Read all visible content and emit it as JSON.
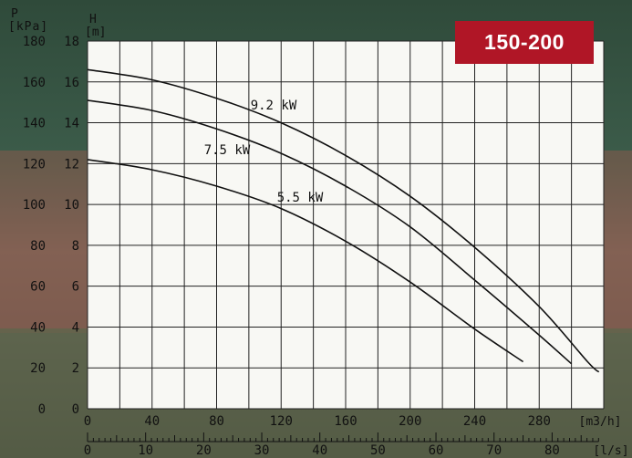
{
  "badge": "150-200",
  "left_axis": {
    "p_symbol": "P",
    "p_unit": "[kPa]",
    "h_symbol": "H",
    "h_unit": "[m]",
    "p_ticks": [
      "0",
      "20",
      "40",
      "60",
      "80",
      "100",
      "120",
      "140",
      "160",
      "180"
    ],
    "h_ticks": [
      "0",
      "2",
      "4",
      "6",
      "8",
      "10",
      "12",
      "14",
      "16",
      "18"
    ]
  },
  "bottom_axis": {
    "flow_m3h_unit": "[m3/h]",
    "flow_m3h_ticks": [
      "0",
      "40",
      "80",
      "120",
      "160",
      "200",
      "240",
      "280"
    ],
    "flow_ls_unit": "[l/s]",
    "flow_ls_ticks": [
      "0",
      "10",
      "20",
      "30",
      "40",
      "50",
      "60",
      "70",
      "80"
    ]
  },
  "colors": {
    "badge_bg": "#b01626",
    "badge_text": "#ffffff",
    "grid": "#222222",
    "curve": "#111111",
    "panel": "#f8f8f4"
  },
  "chart_data": {
    "type": "line",
    "title": "150-200",
    "xlabel": "[m3/h]",
    "ylabel": "H [m]",
    "secondary_xlabel": "[l/s]",
    "secondary_ylabel": "P [kPa]",
    "xlim": [
      0,
      320
    ],
    "ylim": [
      0,
      18
    ],
    "grid": true,
    "series": [
      {
        "name": "9.2 kW",
        "points": [
          [
            0,
            16.6
          ],
          [
            40,
            16.1
          ],
          [
            80,
            15.2
          ],
          [
            120,
            14.0
          ],
          [
            160,
            12.4
          ],
          [
            200,
            10.4
          ],
          [
            240,
            7.9
          ],
          [
            280,
            5.0
          ],
          [
            310,
            2.3
          ],
          [
            317,
            1.8
          ]
        ]
      },
      {
        "name": "7.5 kW",
        "points": [
          [
            0,
            15.1
          ],
          [
            40,
            14.6
          ],
          [
            80,
            13.7
          ],
          [
            120,
            12.5
          ],
          [
            160,
            10.9
          ],
          [
            200,
            8.9
          ],
          [
            240,
            6.3
          ],
          [
            280,
            3.6
          ],
          [
            300,
            2.2
          ]
        ]
      },
      {
        "name": "5.5 kW",
        "points": [
          [
            0,
            12.2
          ],
          [
            40,
            11.7
          ],
          [
            80,
            10.9
          ],
          [
            120,
            9.8
          ],
          [
            160,
            8.2
          ],
          [
            200,
            6.2
          ],
          [
            240,
            3.9
          ],
          [
            270,
            2.3
          ]
        ]
      }
    ]
  }
}
